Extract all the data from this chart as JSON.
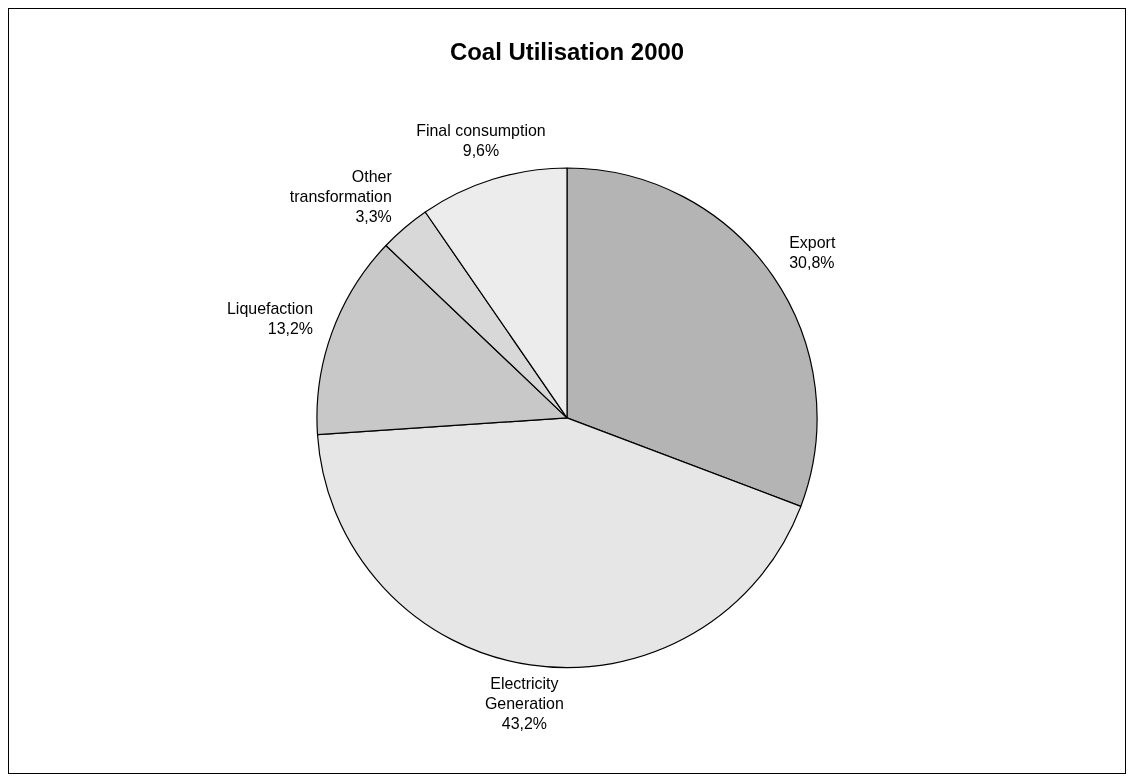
{
  "chart_data": {
    "type": "pie",
    "title": "Coal Utilisation 2000",
    "categories": [
      "Export",
      "Electricity Generation",
      "Liquefaction",
      "Other transformation",
      "Final consumption"
    ],
    "values": [
      30.8,
      43.2,
      13.2,
      3.3,
      9.6
    ],
    "value_labels": [
      "30,8%",
      "43,2%",
      "13,2%",
      "3,3%",
      "9,6%"
    ],
    "colors": [
      "#b4b4b4",
      "#e6e6e6",
      "#c8c8c8",
      "#d8d8d8",
      "#ececec"
    ],
    "legend": false
  }
}
